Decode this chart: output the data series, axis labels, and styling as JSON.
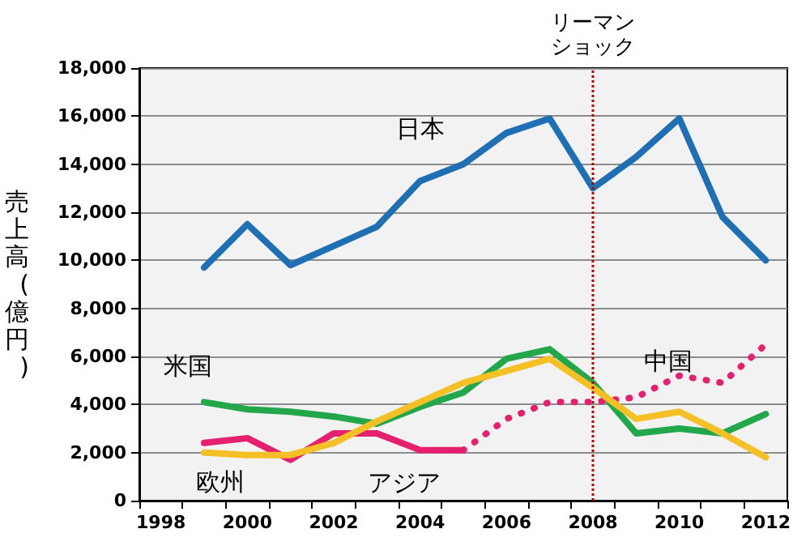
{
  "chart_data": {
    "type": "line",
    "ylabel": "売上高(億円)",
    "categories": [
      "1998",
      null,
      "2000",
      null,
      "2002",
      null,
      "2004",
      null,
      "2006",
      null,
      "2008",
      null,
      "2010",
      null,
      "2012"
    ],
    "series": [
      {
        "name": "日本",
        "color": "#1f6fb4",
        "line_style": "solid",
        "values": [
          null,
          9700,
          11500,
          9800,
          10600,
          11400,
          13300,
          14000,
          15300,
          15900,
          13000,
          14300,
          15900,
          11800,
          10000
        ]
      },
      {
        "name": "米国",
        "color": "#22a84a",
        "line_style": "solid",
        "values": [
          null,
          4100,
          3800,
          3700,
          3500,
          3200,
          3900,
          4500,
          5900,
          6300,
          4900,
          2800,
          3000,
          2800,
          3600
        ]
      },
      {
        "name": "アジア",
        "color": "#e5206e",
        "line_style": "solid",
        "values": [
          null,
          2400,
          2600,
          1700,
          2800,
          2800,
          2100,
          2100,
          null,
          null,
          null,
          null,
          null,
          null,
          null
        ]
      },
      {
        "name": "中国",
        "color": "#e5206e",
        "line_style": "dotted",
        "values": [
          null,
          null,
          null,
          null,
          null,
          null,
          null,
          2100,
          3400,
          4100,
          4100,
          4300,
          5200,
          4900,
          6500
        ]
      },
      {
        "name": "欧州",
        "color": "#f5c026",
        "line_style": "solid",
        "values": [
          null,
          2000,
          1900,
          1900,
          2400,
          3300,
          4100,
          4900,
          5400,
          5900,
          4700,
          3400,
          3700,
          2800,
          1800
        ]
      }
    ],
    "ylim": [
      0,
      18000
    ],
    "yticks": [
      0,
      {
        "value": 2000,
        "label": "2,000"
      },
      {
        "value": 4000,
        "label": "4,000"
      },
      {
        "value": 6000,
        "label": "6,000"
      },
      {
        "value": 8000,
        "label": "8,000"
      },
      {
        "value": 10000,
        "label": "10,000"
      },
      {
        "value": 12000,
        "label": "12,000"
      },
      {
        "value": 14000,
        "label": "14,000"
      },
      {
        "value": 16000,
        "label": "16,000"
      },
      {
        "value": 18000,
        "label": "18,000"
      }
    ],
    "grid": "y",
    "legend": false,
    "marker": "none",
    "ref_lines": [
      {
        "axis": "x",
        "value": "2008",
        "label": "リーマンショック",
        "color": "#c00000",
        "line_style": "dotted"
      }
    ]
  }
}
